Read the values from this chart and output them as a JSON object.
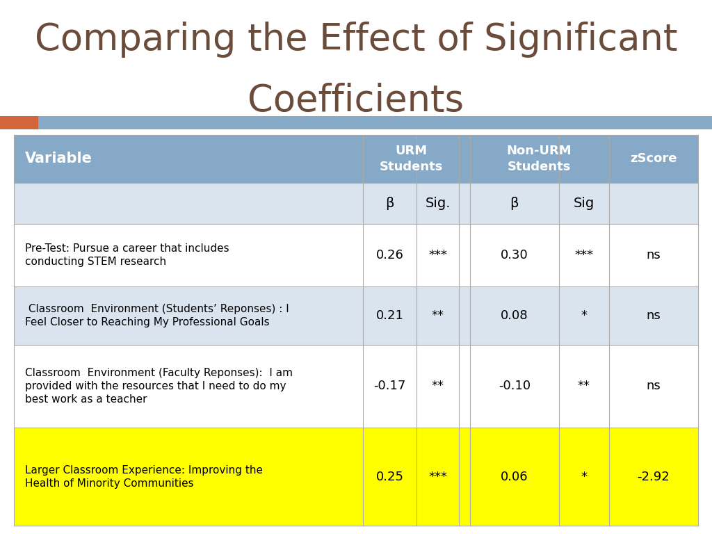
{
  "title_line1": "Comparing the Effect of Significant",
  "title_line2": "Coefficients",
  "title_color": "#6B4C3B",
  "title_fontsize": 38,
  "bg_color": "#FFFFFF",
  "header_bar_color": "#87A9C8",
  "orange_rect_color": "#D2653A",
  "header_text_color": "#FFFFFF",
  "col_header1": "URM\nStudents",
  "col_header2": "Non-URM\nStudents",
  "col_header3": "zScore",
  "row_bg_light": "#D9E4EF",
  "row_bg_white": "#FFFFFF",
  "row_bg_yellow": "#FFFF00",
  "line_color": "#AAAAAA",
  "table_rows": [
    {
      "variable": "Pre-Test: Pursue a career that includes\nconducting STEM research",
      "urm_beta": "0.26",
      "urm_sig": "***",
      "nurm_beta": "0.30",
      "nurm_sig": "***",
      "zscore": "ns",
      "bg": "white"
    },
    {
      "variable": " Classroom  Environment (Students’ Reponses) : I\nFeel Closer to Reaching My Professional Goals",
      "urm_beta": "0.21",
      "urm_sig": "**",
      "nurm_beta": "0.08",
      "nurm_sig": "*",
      "zscore": "ns",
      "bg": "light"
    },
    {
      "variable": "Classroom  Environment (Faculty Reponses):  I am\nprovided with the resources that I need to do my\nbest work as a teacher",
      "urm_beta": "-0.17",
      "urm_sig": "**",
      "nurm_beta": "-0.10",
      "nurm_sig": "**",
      "zscore": "ns",
      "bg": "white"
    },
    {
      "variable": "Larger Classroom Experience: Improving the\nHealth of Minority Communities",
      "urm_beta": "0.25",
      "urm_sig": "***",
      "nurm_beta": "0.06",
      "nurm_sig": "*",
      "zscore": "-2.92",
      "bg": "yellow"
    }
  ]
}
